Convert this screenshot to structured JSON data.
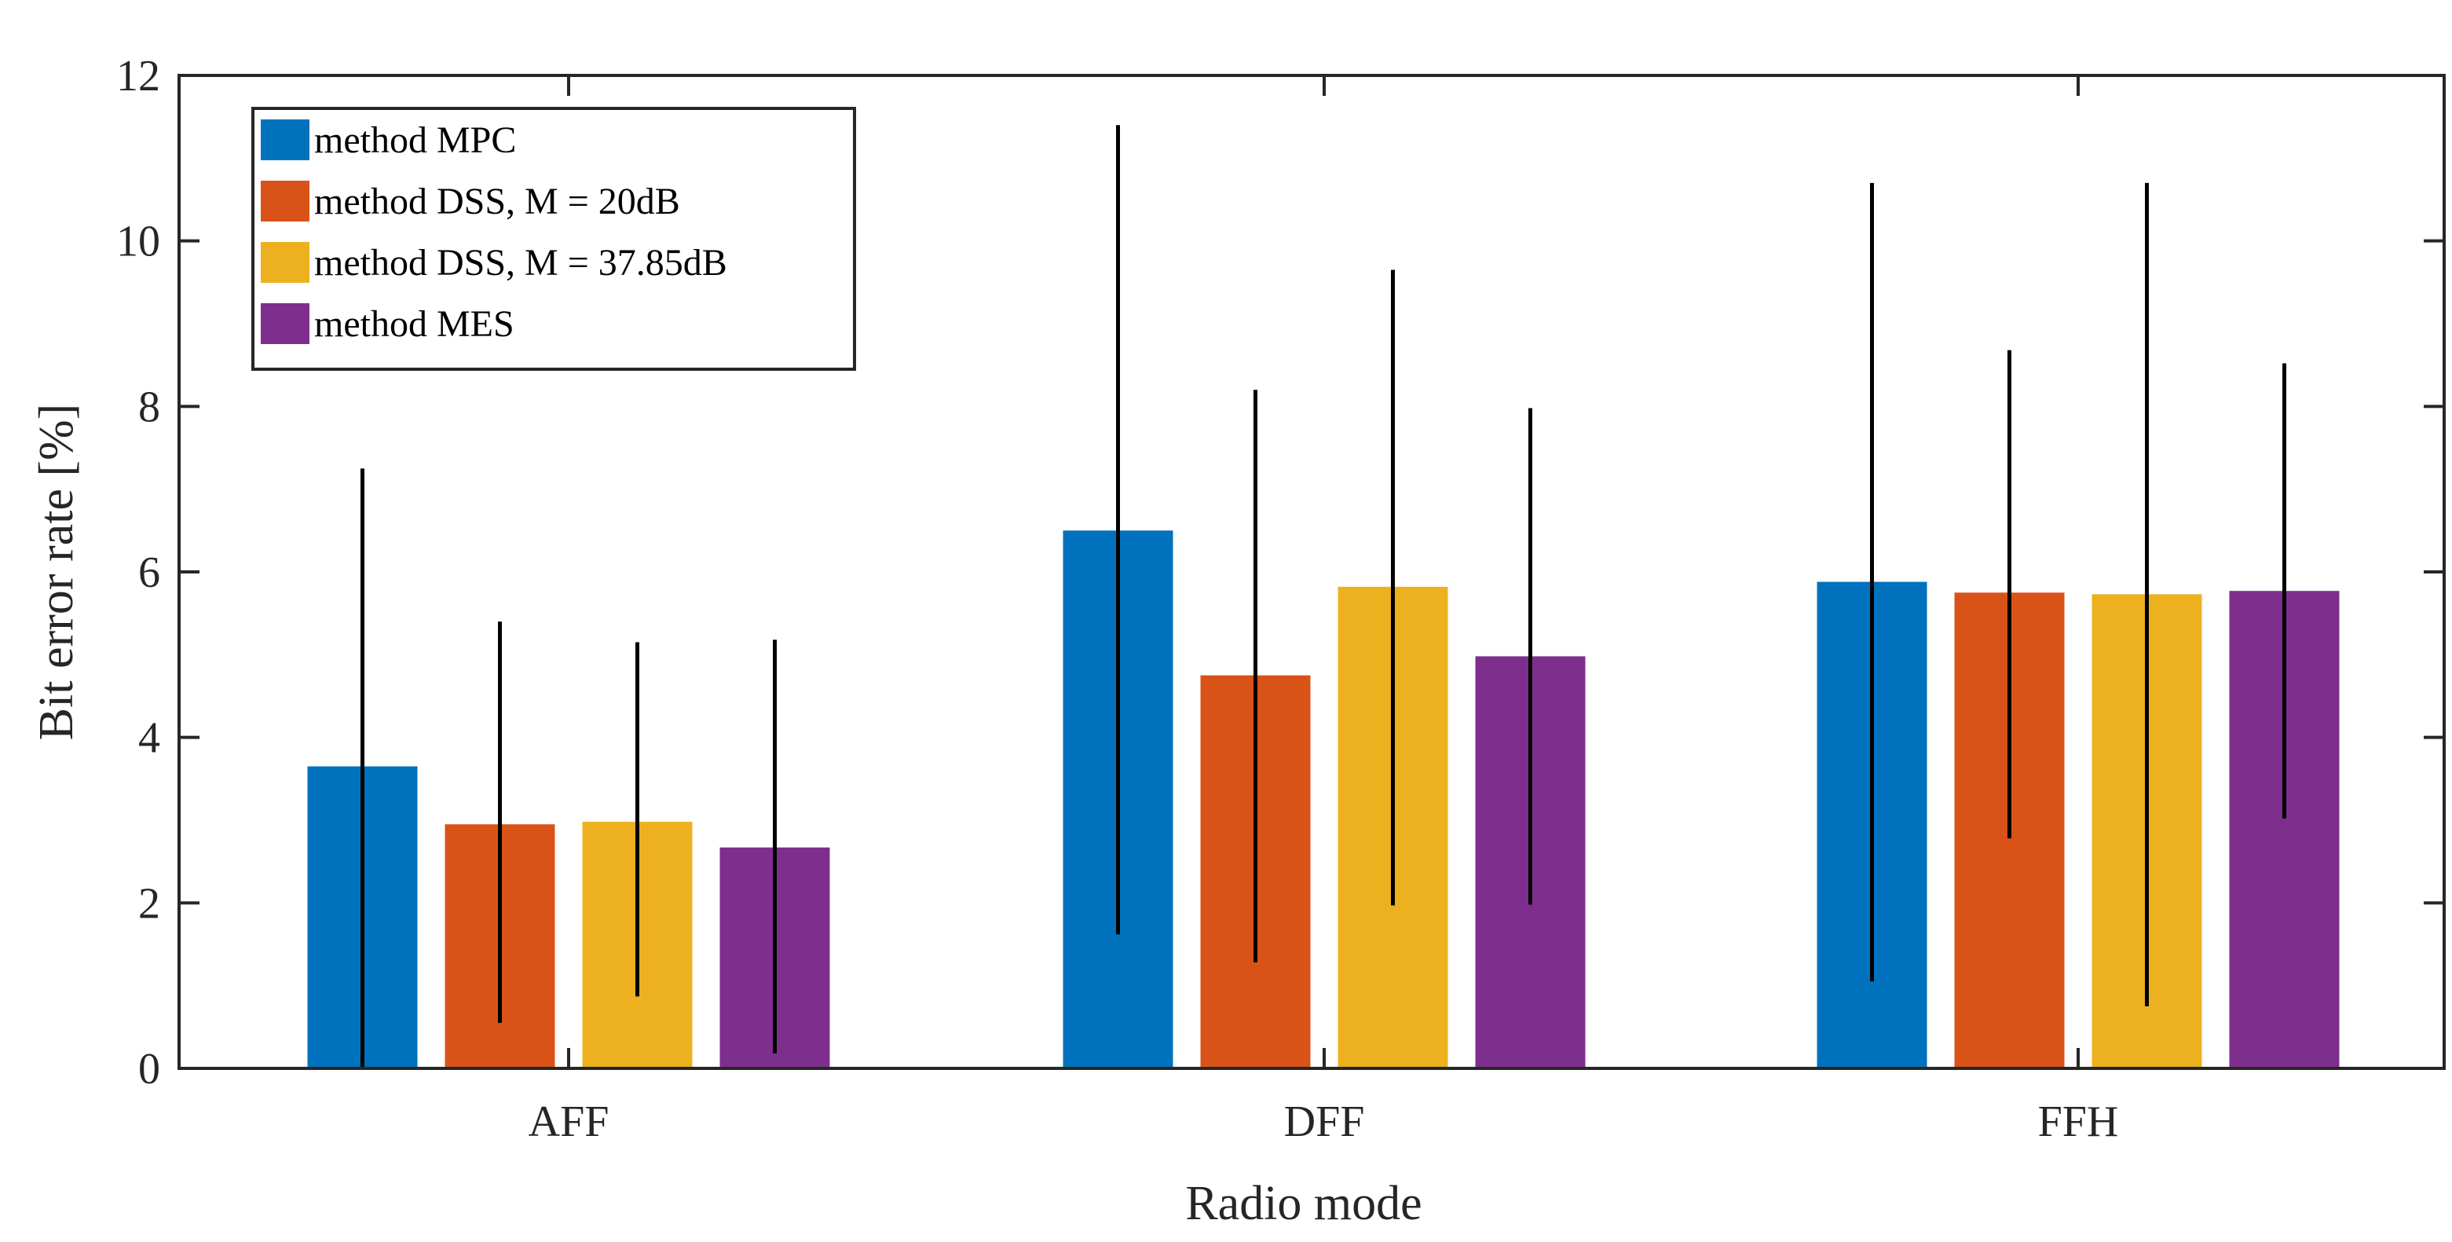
{
  "chart_data": {
    "type": "bar",
    "title": "",
    "xlabel": "Radio mode",
    "ylabel": "Bit error rate [%]",
    "ylim": [
      0,
      12
    ],
    "yticks": [
      0,
      2,
      4,
      6,
      8,
      10,
      12
    ],
    "grid": false,
    "legend_position": "top-left",
    "categories": [
      "AFF",
      "DFF",
      "FFH"
    ],
    "series": [
      {
        "name": "method MPC",
        "color": "#0072BD",
        "values": [
          3.65,
          6.5,
          5.88
        ],
        "err_low": [
          0.0,
          1.62,
          1.05
        ],
        "err_high": [
          7.25,
          11.4,
          10.7
        ]
      },
      {
        "name": "method DSS, M = 20dB",
        "color": "#D95319",
        "values": [
          2.95,
          4.75,
          5.75
        ],
        "err_low": [
          0.55,
          1.28,
          2.78
        ],
        "err_high": [
          5.4,
          8.2,
          8.68
        ]
      },
      {
        "name": "method DSS, M = 37.85dB",
        "color": "#EDB120",
        "values": [
          2.98,
          5.82,
          5.73
        ],
        "err_low": [
          0.87,
          1.97,
          0.75
        ],
        "err_high": [
          5.15,
          9.65,
          10.7
        ]
      },
      {
        "name": "method MES",
        "color": "#7E2F8E",
        "values": [
          2.67,
          4.98,
          5.77
        ],
        "err_low": [
          0.18,
          1.98,
          3.02
        ],
        "err_high": [
          5.18,
          7.98,
          8.52
        ]
      }
    ]
  }
}
